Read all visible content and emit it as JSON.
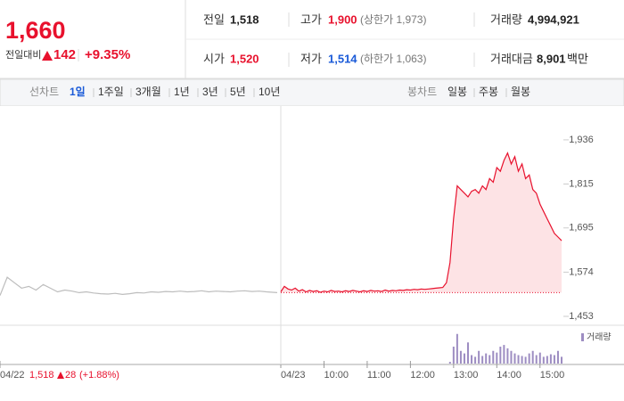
{
  "header": {
    "price": "1,660",
    "change_label": "전일대비",
    "change": "142",
    "change_pct": "+9.35%"
  },
  "stats": [
    {
      "label": "전일",
      "value": "1,518"
    },
    {
      "label": "고가",
      "value": "1,900",
      "note": "(상한가 1,973)"
    },
    {
      "label": "거래량",
      "value": "4,994,921"
    },
    {
      "label": "시가",
      "value": "1,520"
    },
    {
      "label": "저가",
      "value": "1,514",
      "note": "(하한가 1,063)"
    },
    {
      "label": "거래대금",
      "value": "8,901",
      "unit": "백만"
    }
  ],
  "tabs": {
    "line_label": "선차트",
    "line_periods": [
      "1일",
      "1주일",
      "3개월",
      "1년",
      "3년",
      "5년",
      "10년"
    ],
    "candle_label": "봉차트",
    "candle_periods": [
      "일봉",
      "주봉",
      "월봉"
    ]
  },
  "chart_data": {
    "type": "line",
    "xlim": [
      0,
      780
    ],
    "xticks": [
      {
        "value": 0,
        "label": "04/22"
      },
      {
        "value": 390,
        "label": "04/23"
      },
      {
        "value": 450,
        "label": "10:00"
      },
      {
        "value": 510,
        "label": "11:00"
      },
      {
        "value": 570,
        "label": "12:00"
      },
      {
        "value": 630,
        "label": "13:00"
      },
      {
        "value": 690,
        "label": "14:00"
      },
      {
        "value": 750,
        "label": "15:00"
      }
    ],
    "ylim": [
      1436,
      2026
    ],
    "yticks": [
      {
        "value": 1453,
        "label": "1,453"
      },
      {
        "value": 1574,
        "label": "1,574"
      },
      {
        "value": 1695,
        "label": "1,695"
      },
      {
        "value": 1815,
        "label": "1,815"
      },
      {
        "value": 1936,
        "label": "1,936"
      }
    ],
    "reference": 1518,
    "series": [
      {
        "color": "#bdbdbd",
        "x": [
          0,
          10,
          20,
          30,
          40,
          50,
          60,
          70,
          80,
          90,
          100,
          110,
          120,
          130,
          140,
          150,
          160,
          170,
          180,
          190,
          200,
          210,
          220,
          230,
          240,
          250,
          260,
          270,
          280,
          290,
          300,
          310,
          320,
          330,
          340,
          350,
          360,
          370,
          385
        ],
        "values": [
          1510,
          1560,
          1545,
          1530,
          1535,
          1525,
          1540,
          1530,
          1520,
          1525,
          1522,
          1518,
          1520,
          1517,
          1515,
          1514,
          1516,
          1513,
          1515,
          1518,
          1517,
          1520,
          1519,
          1521,
          1520,
          1522,
          1520,
          1521,
          1523,
          1520,
          1522,
          1521,
          1520,
          1522,
          1523,
          1521,
          1522,
          1520,
          1518
        ]
      },
      {
        "color": "#e8112d",
        "fill": "#fde3e5",
        "x": [
          390,
          395,
          400,
          405,
          410,
          415,
          420,
          425,
          430,
          435,
          440,
          445,
          450,
          455,
          460,
          465,
          470,
          475,
          480,
          485,
          490,
          495,
          500,
          505,
          510,
          515,
          520,
          525,
          530,
          535,
          540,
          545,
          550,
          555,
          560,
          565,
          570,
          575,
          580,
          585,
          590,
          595,
          600,
          605,
          610,
          615,
          620,
          625,
          630,
          635,
          640,
          645,
          650,
          655,
          660,
          665,
          670,
          675,
          680,
          685,
          690,
          695,
          700,
          705,
          710,
          715,
          720,
          725,
          730,
          735,
          740,
          745,
          750,
          755,
          760,
          765,
          770,
          775,
          780
        ],
        "values": [
          1520,
          1535,
          1528,
          1525,
          1530,
          1522,
          1526,
          1520,
          1524,
          1521,
          1523,
          1519,
          1522,
          1520,
          1524,
          1521,
          1522,
          1520,
          1523,
          1521,
          1524,
          1522,
          1520,
          1523,
          1521,
          1524,
          1522,
          1523,
          1521,
          1525,
          1522,
          1524,
          1523,
          1525,
          1524,
          1526,
          1525,
          1527,
          1526,
          1528,
          1527,
          1528,
          1529,
          1530,
          1531,
          1532,
          1545,
          1600,
          1720,
          1810,
          1800,
          1790,
          1780,
          1795,
          1800,
          1790,
          1810,
          1800,
          1830,
          1820,
          1860,
          1850,
          1880,
          1900,
          1870,
          1890,
          1850,
          1870,
          1830,
          1840,
          1800,
          1790,
          1760,
          1740,
          1720,
          1700,
          1680,
          1670,
          1660
        ]
      }
    ],
    "prev_day_note": {
      "close": "1,518",
      "change": "28",
      "pct": "(+1.88%)"
    },
    "volume": {
      "name": "거래량",
      "color": "#9d8dc2",
      "ylim": [
        0,
        400
      ],
      "x": [
        625,
        630,
        635,
        640,
        645,
        650,
        655,
        660,
        665,
        670,
        675,
        680,
        685,
        690,
        695,
        700,
        705,
        710,
        715,
        720,
        725,
        730,
        735,
        740,
        745,
        750,
        755,
        760,
        765,
        770,
        775,
        780
      ],
      "values": [
        20,
        200,
        350,
        150,
        120,
        250,
        100,
        80,
        150,
        90,
        120,
        100,
        150,
        130,
        200,
        220,
        180,
        150,
        120,
        100,
        90,
        80,
        120,
        150,
        100,
        130,
        80,
        90,
        110,
        100,
        150,
        80
      ]
    }
  }
}
